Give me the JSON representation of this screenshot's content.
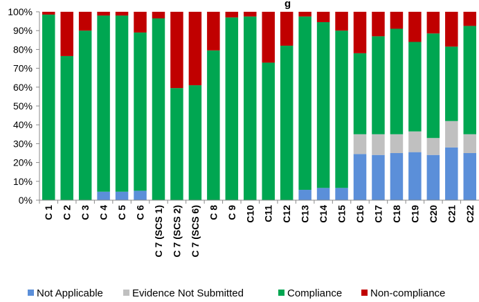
{
  "chart_data": {
    "type": "bar",
    "stacked": true,
    "title_fragment": "g",
    "categories": [
      "C 1",
      "C 2",
      "C 3",
      "C 4",
      "C 5",
      "C 6",
      "C 7 (SCS 1)",
      "C 7 (SCS 2)",
      "C 7 (SCS 6)",
      "C 8",
      "C 9",
      "C10",
      "C11",
      "C12",
      "C13",
      "C14",
      "C15",
      "C16",
      "C17",
      "C18",
      "C19",
      "C20",
      "C21",
      "C22"
    ],
    "series": [
      {
        "name": "Not Applicable",
        "color": "#5B8FD9",
        "values": [
          0,
          0,
          0,
          4.5,
          4.5,
          5,
          0,
          0,
          0,
          0,
          0,
          0,
          0,
          0,
          5.5,
          6.5,
          6.5,
          24.5,
          24,
          25,
          25.5,
          24,
          28,
          25
        ]
      },
      {
        "name": "Evidence Not Submitted",
        "color": "#C0C0C0",
        "values": [
          0,
          0,
          0,
          0,
          0,
          0,
          0,
          0,
          0,
          0,
          0,
          0,
          0,
          0,
          0,
          0,
          0,
          10.5,
          11,
          10,
          11,
          9,
          14,
          10
        ]
      },
      {
        "name": "Compliance",
        "color": "#00A651",
        "values": [
          98.5,
          76.5,
          90,
          93.5,
          93.5,
          84,
          96.5,
          59.5,
          61,
          79.5,
          97,
          97.5,
          73,
          82,
          92,
          88,
          83.5,
          43,
          52,
          56,
          47.5,
          55.5,
          39.5,
          57.5
        ]
      },
      {
        "name": "Non-compliance",
        "color": "#C00000",
        "values": [
          1.5,
          23.5,
          10,
          2,
          2,
          11,
          3.5,
          40.5,
          39,
          20.5,
          3,
          2.5,
          27,
          18,
          2.5,
          5.5,
          10,
          22,
          13,
          9,
          16,
          11.5,
          18.5,
          7.5
        ]
      }
    ],
    "y_tick_labels": [
      "0%",
      "10%",
      "20%",
      "30%",
      "40%",
      "50%",
      "60%",
      "70%",
      "80%",
      "90%",
      "100%"
    ],
    "ylim": [
      0,
      100
    ],
    "grid": false,
    "legend_position": "bottom"
  }
}
